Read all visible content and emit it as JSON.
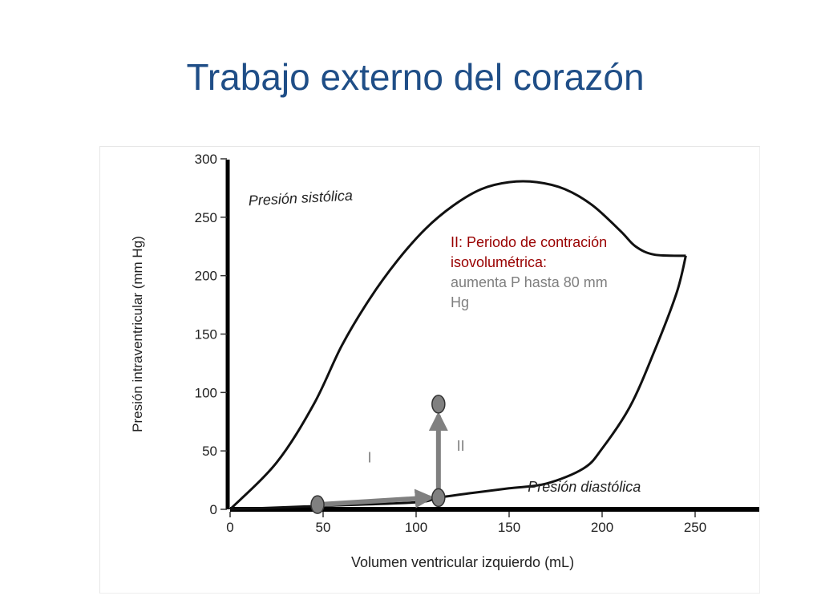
{
  "slide": {
    "title": "Trabajo externo del corazón"
  },
  "annotation": {
    "heading": "II: Periodo de contración isovolumétrica:",
    "body": "aumenta P hasta 80 mm Hg"
  },
  "colors": {
    "title": "#1f4e87",
    "annotation_heading": "#990000",
    "annotation_body": "#7f7f7f",
    "curve": "#111111",
    "arrow": "#808080",
    "marker_fill": "#808080"
  },
  "chart_data": {
    "type": "line",
    "title": "",
    "xlabel": "Volumen ventricular izquierdo (mL)",
    "ylabel": "Presión intraventricular (mm Hg)",
    "xlim": [
      0,
      250
    ],
    "ylim": [
      0,
      300
    ],
    "xticks": [
      "0",
      "50",
      "100",
      "150",
      "200",
      "250"
    ],
    "yticks": [
      "0",
      "50",
      "100",
      "150",
      "200",
      "250",
      "300"
    ],
    "grid": false,
    "series": [
      {
        "name": "Presión sistólica",
        "x": [
          0,
          25,
          45,
          60,
          75,
          90,
          105,
          120,
          135,
          150,
          165,
          180,
          195,
          210,
          218,
          228,
          245
        ],
        "y": [
          0,
          40,
          90,
          140,
          180,
          213,
          240,
          260,
          274,
          280,
          280,
          274,
          260,
          238,
          225,
          218,
          217
        ]
      },
      {
        "name": "Presión diastólica",
        "x": [
          0,
          50,
          100,
          112,
          130,
          150,
          170,
          190,
          200,
          215,
          228,
          240,
          245
        ],
        "y": [
          0,
          3,
          6,
          10,
          14,
          18,
          22,
          35,
          52,
          88,
          135,
          185,
          217
        ]
      }
    ],
    "points": [
      {
        "x": 47,
        "y": 4
      },
      {
        "x": 112,
        "y": 10
      },
      {
        "x": 112,
        "y": 90
      }
    ],
    "period_labels": [
      {
        "text": "I",
        "x": 75,
        "y": 40
      },
      {
        "text": "II",
        "x": 124,
        "y": 50
      }
    ]
  }
}
